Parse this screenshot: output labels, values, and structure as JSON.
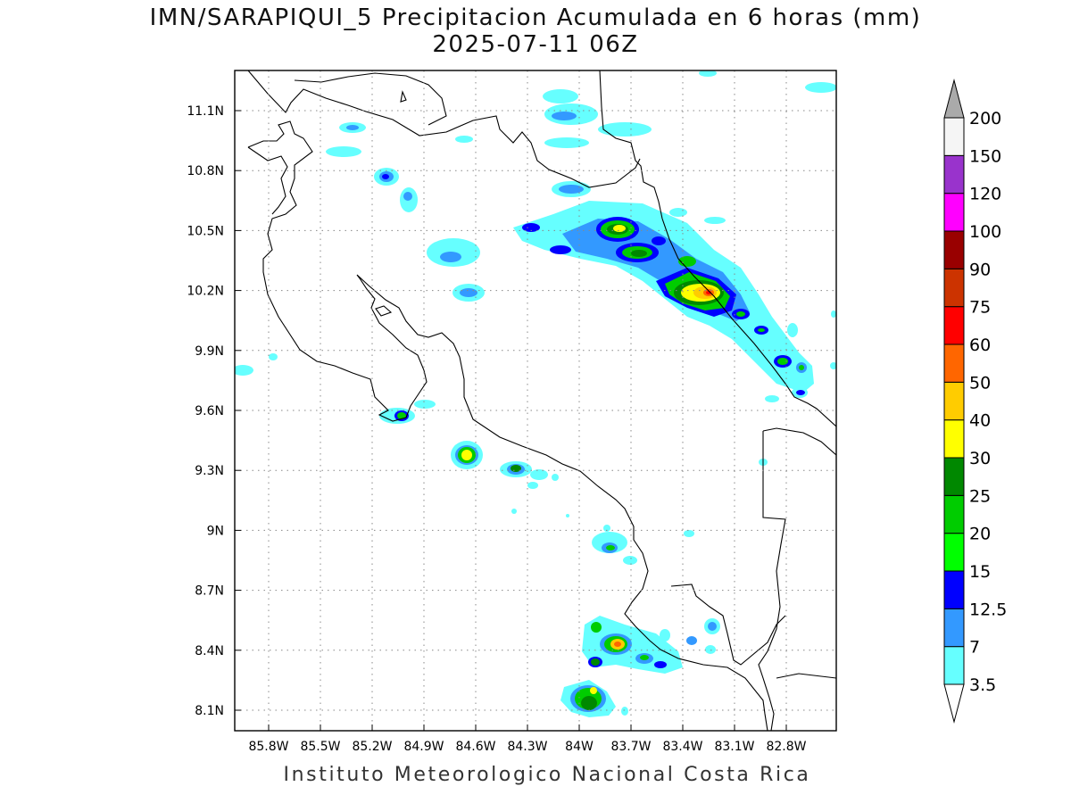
{
  "title": {
    "line1": "IMN/SARAPIQUI_5 Precipitacion Acumulada en 6 horas (mm)",
    "line2": "2025-07-11 06Z"
  },
  "footer": "Instituto Meteorologico Nacional Costa Rica",
  "map": {
    "lon_range": [
      -86.05,
      82.5
    ],
    "lat_range": [
      8.0,
      11.3
    ],
    "lon_ticks": [
      "85.8W",
      "85.5W",
      "85.2W",
      "84.9W",
      "84.6W",
      "84.3W",
      "84W",
      "83.7W",
      "83.4W",
      "83.1W",
      "82.8W"
    ],
    "lat_ticks": [
      "11.1N",
      "10.8N",
      "10.5N",
      "10.2N",
      "9.9N",
      "9.6N",
      "9.3N",
      "9N",
      "8.7N",
      "8.4N",
      "8.1N"
    ],
    "gridlines": true
  },
  "colorbar": {
    "levels": [
      "3.5",
      "7",
      "12.5",
      "15",
      "20",
      "25",
      "30",
      "40",
      "50",
      "60",
      "75",
      "90",
      "100",
      "120",
      "150",
      "200"
    ],
    "colors": [
      "#66ffff",
      "#3399ff",
      "#0000ff",
      "#00ff00",
      "#00cc00",
      "#008800",
      "#ffff00",
      "#ffcc00",
      "#ff6600",
      "#ff0000",
      "#cc3300",
      "#990000",
      "#ff00ff",
      "#9933cc",
      "#f5f5f5",
      "#aaaaaa"
    ]
  },
  "precip_cells": [
    {
      "lon": -83.25,
      "lat": 10.18,
      "max_mm": 60
    },
    {
      "lon": -83.82,
      "lat": 10.5,
      "max_mm": 30
    },
    {
      "lon": -83.72,
      "lat": 10.38,
      "max_mm": 25
    },
    {
      "lon": -84.63,
      "lat": 9.38,
      "max_mm": 40
    },
    {
      "lon": -84.37,
      "lat": 9.31,
      "max_mm": 25
    },
    {
      "lon": -85.05,
      "lat": 9.58,
      "max_mm": 20
    },
    {
      "lon": -83.78,
      "lat": 8.43,
      "max_mm": 40
    },
    {
      "lon": -83.92,
      "lat": 8.17,
      "max_mm": 25
    },
    {
      "lon": -83.97,
      "lat": 8.2,
      "max_mm": 20
    },
    {
      "lon": -83.85,
      "lat": 8.89,
      "max_mm": 20
    },
    {
      "lon": -82.87,
      "lat": 9.84,
      "max_mm": 20
    },
    {
      "lon": -83.38,
      "lat": 10.35,
      "max_mm": 20
    }
  ]
}
